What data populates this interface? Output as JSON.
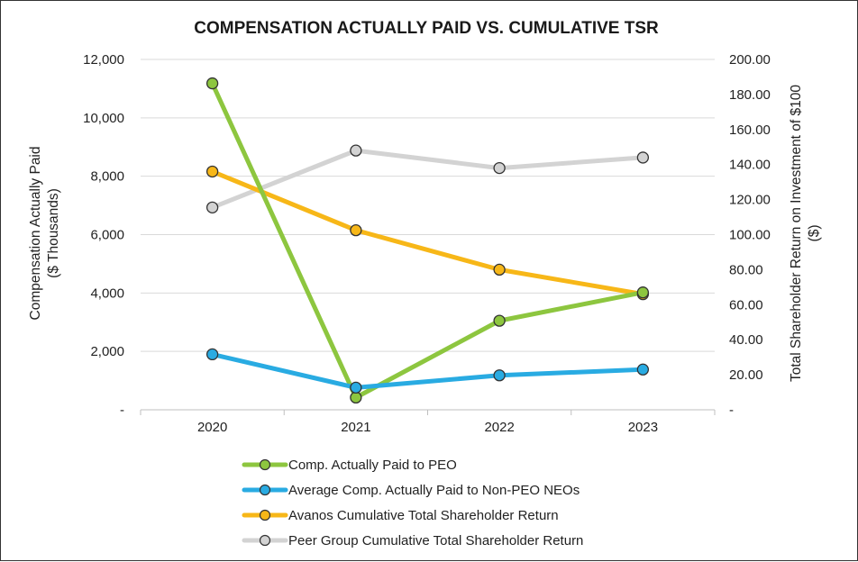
{
  "chart_data": {
    "type": "line",
    "title": "COMPENSATION ACTUALLY PAID VS. CUMULATIVE TSR",
    "categories": [
      "2020",
      "2021",
      "2022",
      "2023"
    ],
    "ylabel_left": [
      "Compensation Actually Paid",
      "($ Thousands)"
    ],
    "ylabel_right": [
      "Total Shareholder Return on Investment of $100",
      "($)"
    ],
    "ylim_left": [
      0,
      12000
    ],
    "ylim_right": [
      0,
      200
    ],
    "left_ticks": [
      "-",
      "2,000",
      "4,000",
      "6,000",
      "8,000",
      "10,000",
      "12,000"
    ],
    "right_ticks": [
      "-",
      "20.00",
      "40.00",
      "60.00",
      "80.00",
      "100.00",
      "120.00",
      "140.00",
      "160.00",
      "180.00",
      "200.00"
    ],
    "grid": true,
    "legend_position": "bottom",
    "series": [
      {
        "name": "Comp. Actually Paid to PEO",
        "axis": "left",
        "color": "#8dc63f",
        "values": [
          11180,
          420,
          3050,
          4020
        ]
      },
      {
        "name": "Average Comp. Actually Paid to Non-PEO NEOs",
        "axis": "left",
        "color": "#29abe2",
        "values": [
          1900,
          760,
          1180,
          1380
        ]
      },
      {
        "name": "Avanos Cumulative Total Shareholder Return",
        "axis": "right",
        "color": "#f7b718",
        "values": [
          136,
          102.5,
          80,
          66
        ]
      },
      {
        "name": "Peer Group Cumulative Total Shareholder Return",
        "axis": "right",
        "color": "#d3d3d3",
        "values": [
          115.5,
          148,
          138,
          144
        ]
      }
    ]
  }
}
